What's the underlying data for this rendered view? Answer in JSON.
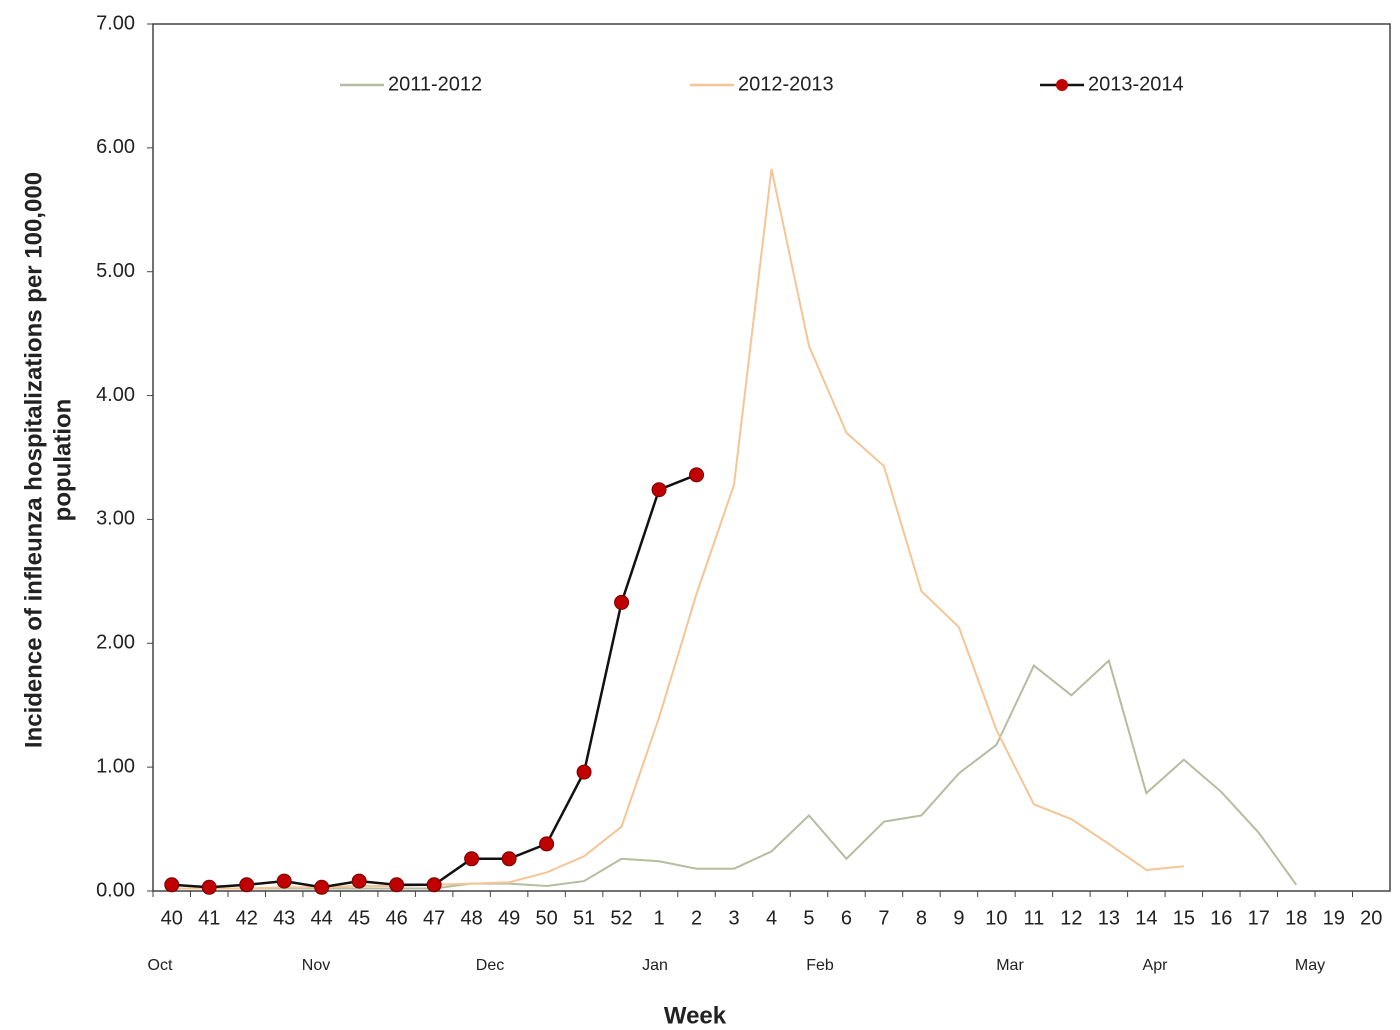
{
  "chart_data": {
    "type": "line",
    "y_label_lines": [
      "Incidence of infleunza hospitalizations per 100,000",
      "population"
    ],
    "x_label": "Week",
    "categories": [
      "40",
      "41",
      "42",
      "43",
      "44",
      "45",
      "46",
      "47",
      "48",
      "49",
      "50",
      "51",
      "52",
      "1",
      "2",
      "3",
      "4",
      "5",
      "6",
      "7",
      "8",
      "9",
      "10",
      "11",
      "12",
      "13",
      "14",
      "15",
      "16",
      "17",
      "18",
      "19",
      "20"
    ],
    "months": [
      "Oct",
      "Nov",
      "Dec",
      "Jan",
      "Feb",
      "Mar",
      "Apr",
      "May"
    ],
    "ylim": [
      0,
      7
    ],
    "yticks": [
      {
        "value": 0,
        "label": "0.00"
      },
      {
        "value": 1,
        "label": "1.00"
      },
      {
        "value": 2,
        "label": "2.00"
      },
      {
        "value": 3,
        "label": "3.00"
      },
      {
        "value": 4,
        "label": "4.00"
      },
      {
        "value": 5,
        "label": "5.00"
      },
      {
        "value": 6,
        "label": "6.00"
      },
      {
        "value": 7,
        "label": "7.00"
      }
    ],
    "legend": "top",
    "series": [
      {
        "name": "2011-2012",
        "color": "#b5bda0",
        "marker": false,
        "values": [
          0.02,
          0.02,
          0.02,
          0.02,
          0.02,
          0.02,
          0.02,
          0.02,
          0.06,
          0.06,
          0.04,
          0.08,
          0.26,
          0.24,
          0.18,
          0.18,
          0.32,
          0.61,
          0.26,
          0.56,
          0.61,
          0.95,
          1.18,
          1.82,
          1.58,
          1.86,
          0.79,
          1.06,
          0.8,
          0.47,
          0.05,
          null,
          null
        ]
      },
      {
        "name": "2012-2013",
        "color": "#f5c596",
        "marker": false,
        "values": [
          0.02,
          0.02,
          0.02,
          0.03,
          0.03,
          0.04,
          0.04,
          0.05,
          0.06,
          0.07,
          0.15,
          0.28,
          0.52,
          1.4,
          2.4,
          3.28,
          5.83,
          4.4,
          3.7,
          3.43,
          2.42,
          2.13,
          1.3,
          0.7,
          0.58,
          0.38,
          0.17,
          0.2,
          null,
          null,
          null,
          null,
          null
        ]
      },
      {
        "name": "2013-2014",
        "color": "#111111",
        "marker": true,
        "marker_color": "#c00000",
        "values": [
          0.05,
          0.03,
          0.05,
          0.08,
          0.03,
          0.08,
          0.05,
          0.05,
          0.26,
          0.26,
          0.38,
          0.96,
          2.33,
          3.24,
          3.36,
          null,
          null,
          null,
          null,
          null,
          null,
          null,
          null,
          null,
          null,
          null,
          null,
          null,
          null,
          null,
          null,
          null,
          null
        ]
      }
    ]
  }
}
